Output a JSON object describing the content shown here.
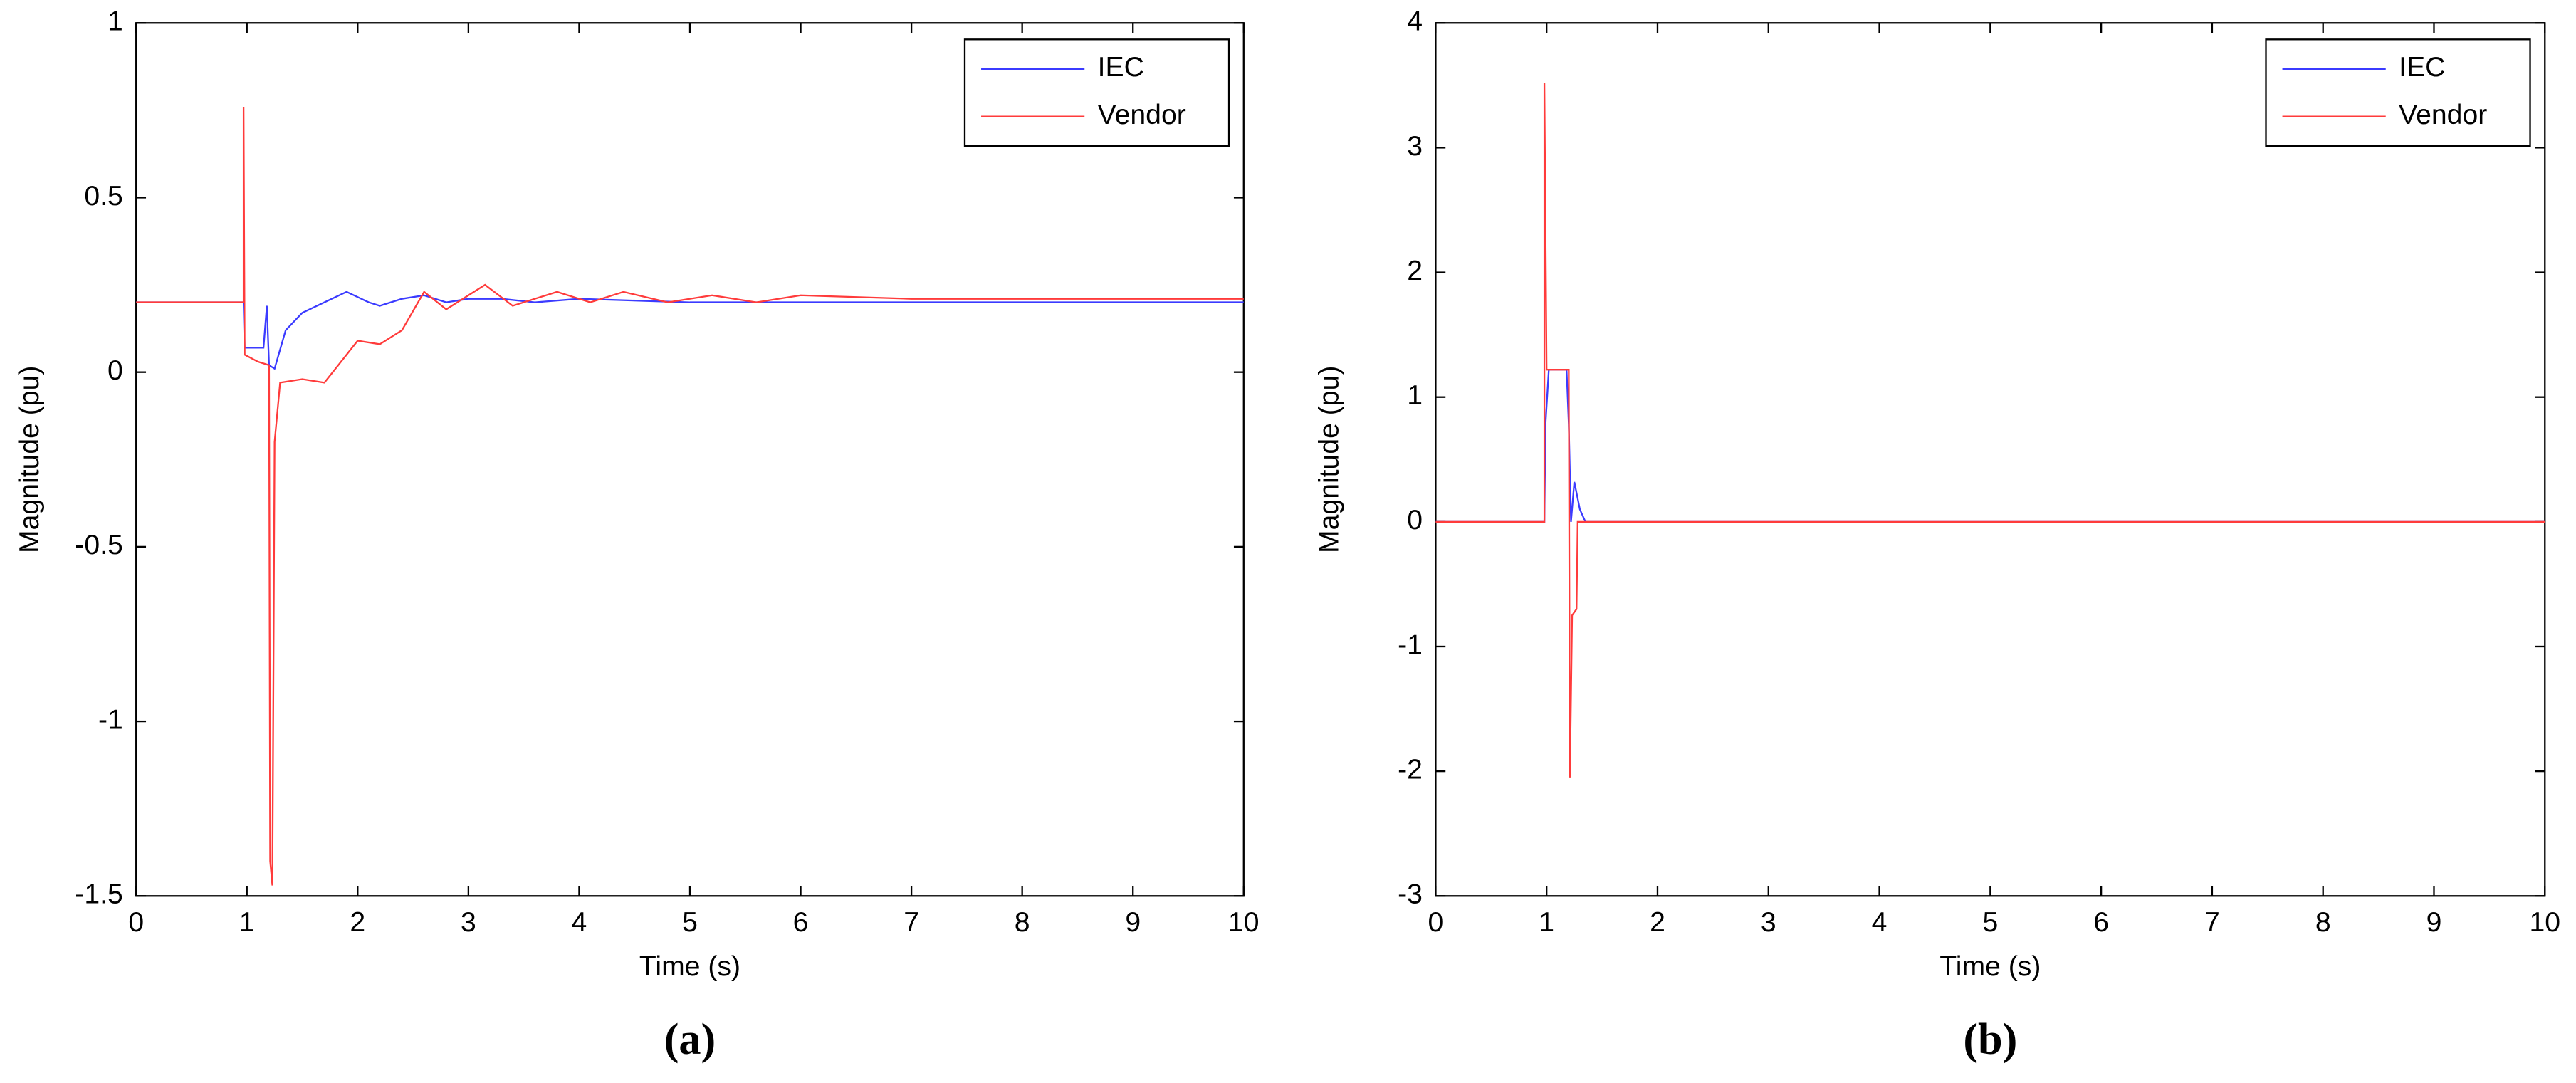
{
  "chart_data": [
    {
      "type": "line",
      "caption": "(a)",
      "xlabel": "Time (s)",
      "ylabel": "Magnitude (pu)",
      "xlim": [
        0,
        10
      ],
      "xticks": [
        0,
        1,
        2,
        3,
        4,
        5,
        6,
        7,
        8,
        9,
        10
      ],
      "ylim": [
        -1.5,
        1
      ],
      "yticks": [
        -1.5,
        -1,
        -0.5,
        0,
        0.5,
        1
      ],
      "legend": "upper right",
      "series": [
        {
          "name": "IEC",
          "color": "#3b3bff",
          "x": [
            0,
            0.97,
            0.98,
            1.15,
            1.18,
            1.2,
            1.25,
            1.35,
            1.5,
            1.7,
            1.9,
            2.1,
            2.2,
            2.4,
            2.6,
            2.8,
            3.0,
            3.3,
            3.6,
            4.0,
            5.0,
            10
          ],
          "values": [
            0.2,
            0.2,
            0.07,
            0.07,
            0.19,
            0.02,
            0.01,
            0.12,
            0.17,
            0.2,
            0.23,
            0.2,
            0.19,
            0.21,
            0.22,
            0.2,
            0.21,
            0.21,
            0.2,
            0.21,
            0.2,
            0.2
          ]
        },
        {
          "name": "Vendor",
          "color": "#ff3b3b",
          "x": [
            0,
            0.97,
            0.97,
            0.98,
            1.1,
            1.2,
            1.21,
            1.23,
            1.25,
            1.3,
            1.5,
            1.7,
            1.9,
            2.0,
            2.2,
            2.4,
            2.6,
            2.8,
            3.0,
            3.15,
            3.4,
            3.8,
            4.1,
            4.4,
            4.8,
            5.2,
            5.6,
            6.0,
            7.0,
            8.0,
            9.0,
            10
          ],
          "values": [
            0.2,
            0.2,
            0.76,
            0.05,
            0.03,
            0.02,
            -1.4,
            -1.47,
            -0.2,
            -0.03,
            -0.02,
            -0.03,
            0.05,
            0.09,
            0.08,
            0.12,
            0.23,
            0.18,
            0.22,
            0.25,
            0.19,
            0.23,
            0.2,
            0.23,
            0.2,
            0.22,
            0.2,
            0.22,
            0.21,
            0.21,
            0.21,
            0.21
          ]
        }
      ]
    },
    {
      "type": "line",
      "caption": "(b)",
      "xlabel": "Time (s)",
      "ylabel": "Magnitude (pu)",
      "xlim": [
        0,
        10
      ],
      "xticks": [
        0,
        1,
        2,
        3,
        4,
        5,
        6,
        7,
        8,
        9,
        10
      ],
      "ylim": [
        -3,
        4
      ],
      "yticks": [
        -3,
        -2,
        -1,
        0,
        1,
        2,
        3,
        4
      ],
      "legend": "upper right",
      "series": [
        {
          "name": "IEC",
          "color": "#3b3bff",
          "x": [
            0,
            0.98,
            0.99,
            1.02,
            1.18,
            1.2,
            1.22,
            1.25,
            1.3,
            1.35,
            10
          ],
          "values": [
            0,
            0,
            0.78,
            1.22,
            1.22,
            0.78,
            0,
            0.32,
            0.1,
            0,
            0
          ]
        },
        {
          "name": "Vendor",
          "color": "#ff3b3b",
          "x": [
            0,
            0.98,
            0.98,
            1.0,
            1.2,
            1.21,
            1.23,
            1.27,
            1.28,
            10
          ],
          "values": [
            0,
            0,
            3.52,
            1.22,
            1.22,
            -2.05,
            -0.75,
            -0.7,
            0,
            0
          ]
        }
      ]
    }
  ]
}
